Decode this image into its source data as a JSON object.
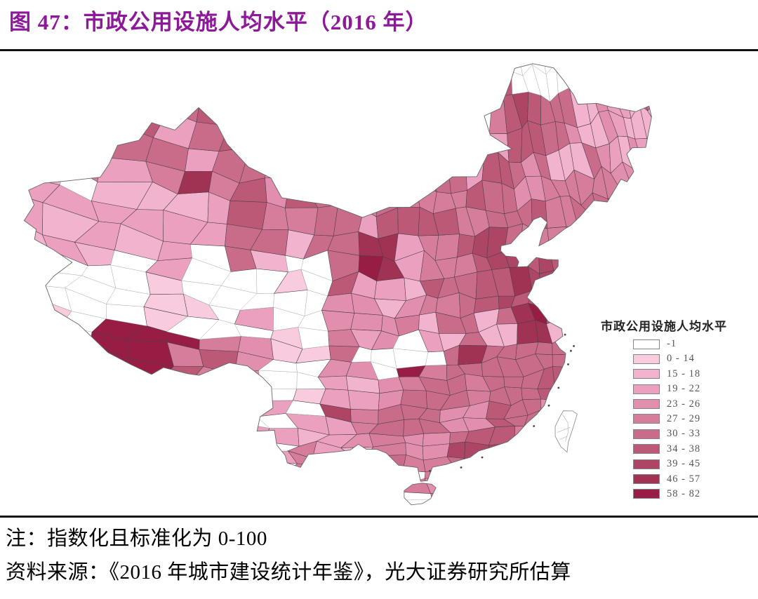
{
  "figure": {
    "title": "图 47：市政公用设施人均水平（2016 年）",
    "title_color": "#8d189a",
    "note": "注：指数化且标准化为 0-100",
    "source": "资料来源：《2016 年城市建设统计年鉴》，光大证券研究所估算"
  },
  "legend": {
    "title": "市政公用设施人均水平",
    "items": [
      {
        "label": "-1",
        "color": "#ffffff"
      },
      {
        "label": "0 - 14",
        "color": "#f8cbdf"
      },
      {
        "label": "15 - 18",
        "color": "#f2b3cf"
      },
      {
        "label": "19 - 22",
        "color": "#eba0bf"
      },
      {
        "label": "23 - 26",
        "color": "#e28eae"
      },
      {
        "label": "27 - 29",
        "color": "#d57d9b"
      },
      {
        "label": "30 - 33",
        "color": "#c96c89"
      },
      {
        "label": "34 - 38",
        "color": "#bb5977"
      },
      {
        "label": "39 - 45",
        "color": "#ad4665"
      },
      {
        "label": "46 - 57",
        "color": "#a03254"
      },
      {
        "label": "58 - 82",
        "color": "#971d45"
      }
    ]
  },
  "chart_data": {
    "type": "choropleth-map",
    "region": "China, prefecture-level divisions",
    "title": "市政公用设施人均水平",
    "year_shown": "2016",
    "classes": [
      "-1",
      "0 - 14",
      "15 - 18",
      "19 - 22",
      "23 - 26",
      "27 - 29",
      "30 - 33",
      "34 - 38",
      "39 - 45",
      "46 - 57",
      "58 - 82"
    ],
    "class_colors": [
      "#ffffff",
      "#f8cbdf",
      "#f2b3cf",
      "#eba0bf",
      "#e28eae",
      "#d57d9b",
      "#c96c89",
      "#bb5977",
      "#ad4665",
      "#a03254",
      "#971d45"
    ],
    "no_data_label": "-1",
    "legend_position": "right",
    "note": "指数化且标准化为 0-100"
  }
}
